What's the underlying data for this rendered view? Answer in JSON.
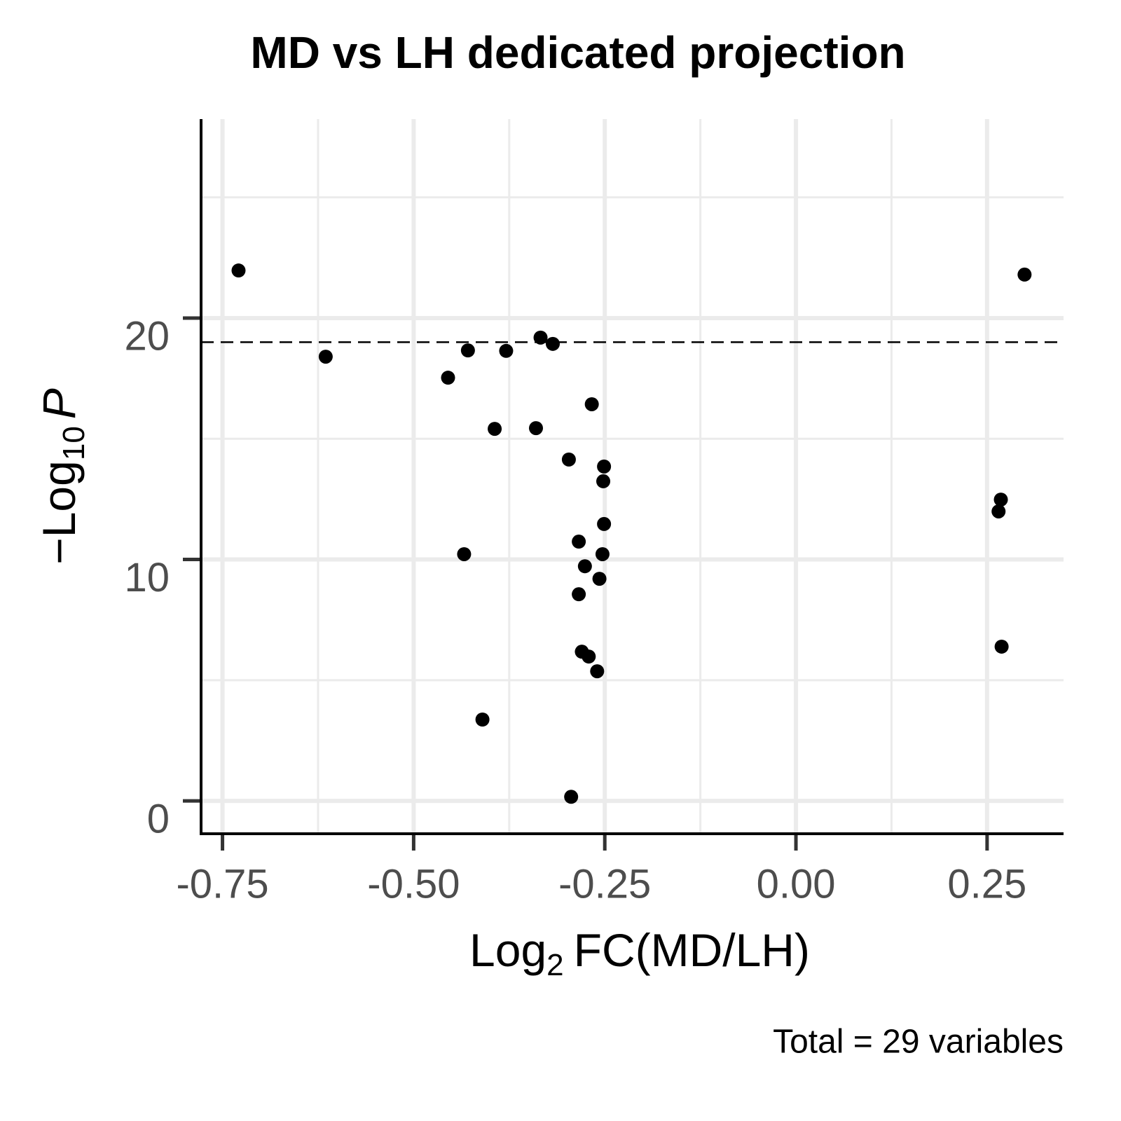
{
  "chart_data": {
    "type": "scatter",
    "title": "MD vs LH dedicated projection",
    "xlabel_parts": [
      "Log",
      "2",
      "FC(MD/LH)"
    ],
    "ylabel_parts": [
      "−Log",
      "10",
      "P"
    ],
    "caption": "Total = 29 variables",
    "x": [
      -0.729,
      0.299,
      -0.615,
      -0.429,
      -0.379,
      -0.334,
      -0.318,
      -0.455,
      -0.267,
      -0.394,
      -0.34,
      -0.297,
      -0.251,
      -0.252,
      0.268,
      0.265,
      -0.251,
      -0.284,
      -0.434,
      -0.253,
      -0.276,
      -0.257,
      -0.284,
      0.269,
      -0.28,
      -0.271,
      -0.26,
      -0.41,
      -0.294
    ],
    "values": [
      21.97,
      21.8,
      18.4,
      18.66,
      18.64,
      19.19,
      18.93,
      17.53,
      16.43,
      15.41,
      15.44,
      14.14,
      13.85,
      13.24,
      12.48,
      11.99,
      11.47,
      10.74,
      10.22,
      10.22,
      9.72,
      9.2,
      8.56,
      6.39,
      6.18,
      5.98,
      5.37,
      3.37,
      0.17
    ],
    "color": "#000000",
    "xlim": [
      -0.778,
      0.35
    ],
    "ylim": [
      -1.36,
      28.24
    ],
    "xticks": [
      -0.75,
      {
        "value": -0.5,
        "label": "-0.50"
      },
      -0.25,
      {
        "value": 0,
        "label": "0.00"
      },
      0.25
    ],
    "yticks": [
      0,
      10,
      20
    ],
    "x_minor_grid": [
      -0.625,
      -0.375,
      -0.125,
      0.125
    ],
    "y_minor_grid": [
      5,
      15,
      25
    ],
    "threshold_y": 19,
    "grid": true
  }
}
